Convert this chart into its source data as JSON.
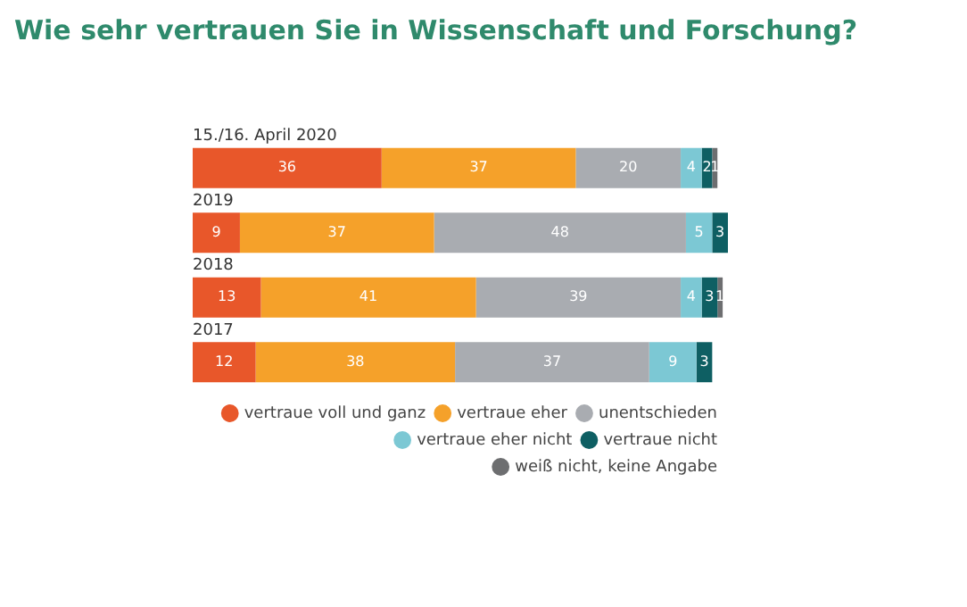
{
  "chart_data": {
    "type": "bar",
    "orientation": "horizontal",
    "stacked": true,
    "title": "Wie sehr vertrauen Sie in Wissenschaft und Forschung?",
    "categories": [
      "15./16. April 2020",
      "2019",
      "2018",
      "2017"
    ],
    "data_labels": true,
    "legend": "bottom right",
    "series": [
      {
        "name": "vertraue voll und ganz",
        "color": "#e8572a",
        "values": [
          36,
          9,
          13,
          12
        ]
      },
      {
        "name": "vertraue eher",
        "color": "#f5a12a",
        "values": [
          37,
          37,
          41,
          38
        ]
      },
      {
        "name": "unentschieden",
        "color": "#a9acb1",
        "values": [
          20,
          48,
          39,
          37
        ]
      },
      {
        "name": "vertraue eher nicht",
        "color": "#7cc8d4",
        "values": [
          4,
          5,
          4,
          9
        ]
      },
      {
        "name": "vertraue nicht",
        "color": "#0e5f63",
        "values": [
          2,
          3,
          3,
          3
        ]
      },
      {
        "name": "weiß nicht, keine Angabe",
        "color": "#6d6e70",
        "values": [
          1,
          null,
          1,
          null
        ]
      }
    ]
  }
}
